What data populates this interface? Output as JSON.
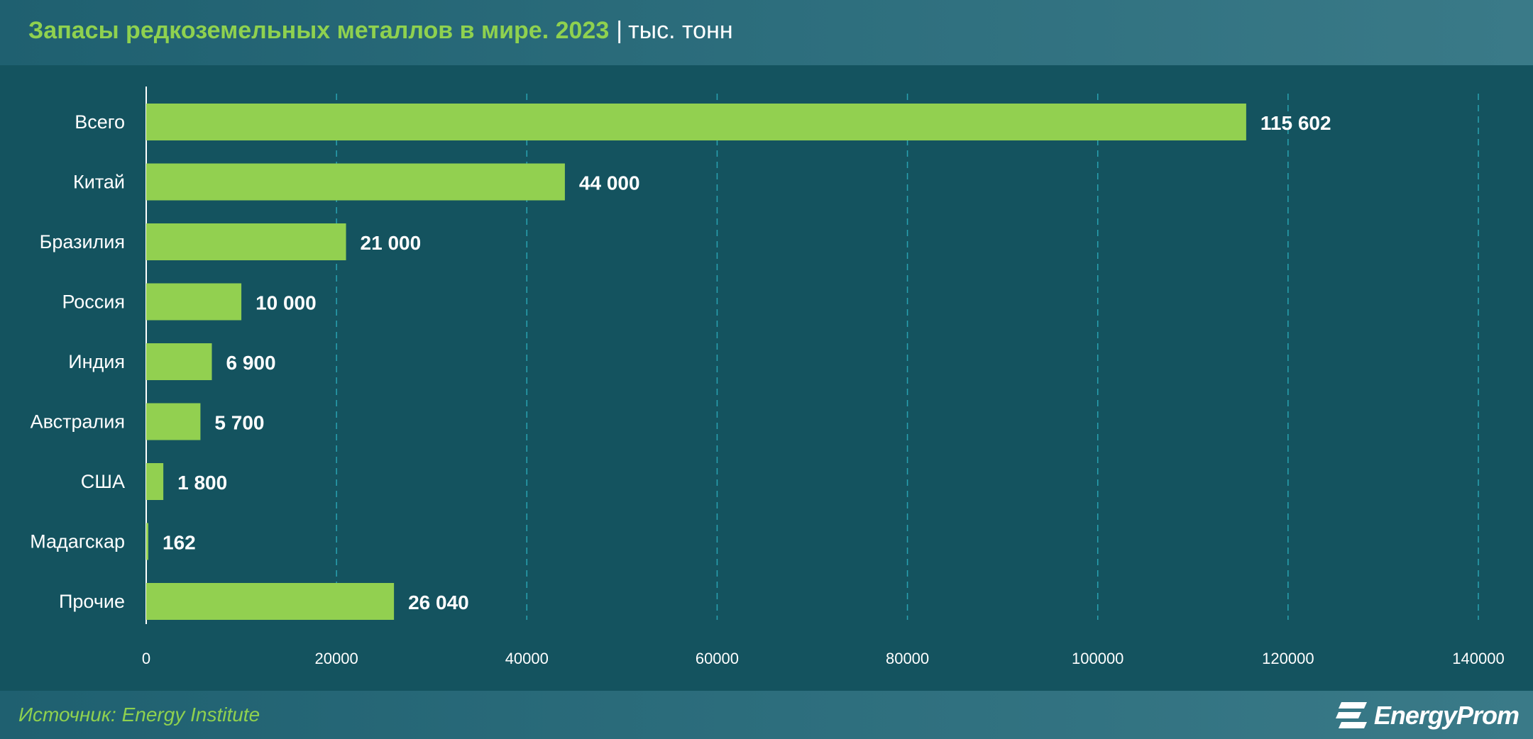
{
  "header": {
    "title": "Запасы редкоземельных металлов в мире. 2023",
    "separator": "|",
    "unit": "тыс. тонн"
  },
  "footer": {
    "source": "Источник: Energy Institute",
    "logo_text": "EnergyProm",
    "logo_icon": "energyprom-logo-icon"
  },
  "colors": {
    "background": "#14535f",
    "bar": "#92d050",
    "title": "#8fd14f",
    "gridline": "#2fb6c6"
  },
  "chart_data": {
    "type": "bar",
    "orientation": "horizontal",
    "title": "Запасы редкоземельных металлов в мире. 2023",
    "unit": "тыс. тонн",
    "categories": [
      "Всего",
      "Китай",
      "Бразилия",
      "Россия",
      "Индия",
      "Австралия",
      "США",
      "Мадагскар",
      "Прочие"
    ],
    "values": [
      115602,
      44000,
      21000,
      10000,
      6900,
      5700,
      1800,
      162,
      26040
    ],
    "value_labels": [
      "115 602",
      "44 000",
      "21 000",
      "10 000",
      "6 900",
      "5 700",
      "1 800",
      "162",
      "26 040"
    ],
    "xlim": [
      0,
      140000
    ],
    "xticks": [
      0,
      20000,
      40000,
      60000,
      80000,
      100000,
      120000,
      140000
    ],
    "xtick_labels": [
      "0",
      "20000",
      "40000",
      "60000",
      "80000",
      "100000",
      "120000",
      "140000"
    ],
    "grid": "vertical-dashed",
    "legend": "none"
  }
}
